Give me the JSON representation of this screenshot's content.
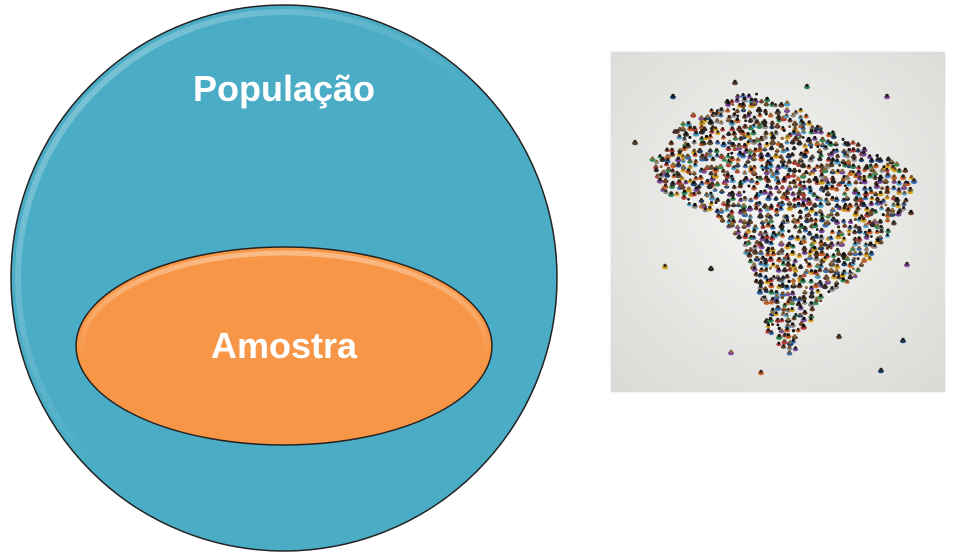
{
  "diagram": {
    "outer_set": {
      "label": "População",
      "fill": "#4bacc6",
      "stroke": "#222222"
    },
    "inner_set": {
      "label": "Amostra",
      "fill": "#f79646",
      "stroke": "#222222"
    }
  },
  "photo": {
    "subject": "crowd-forming-map-of-brazil",
    "background": "#e7e7e5"
  }
}
